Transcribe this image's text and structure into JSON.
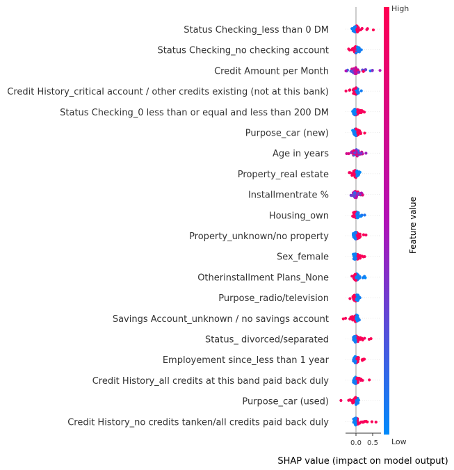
{
  "chart_data": {
    "type": "scatter",
    "subtype": "shap-beeswarm",
    "xlabel": "SHAP value (impact on model output)",
    "xticks": [
      0.0,
      0.5
    ],
    "xtick_labels": [
      "0.0",
      "0.5"
    ],
    "xlim": [
      -0.5,
      0.75
    ],
    "colorbar": {
      "title": "Feature value",
      "high_label": "High",
      "low_label": "Low",
      "low_color": "#008afb",
      "mid_color": "#b111b6",
      "high_color": "#ff0052"
    },
    "features": [
      {
        "name": "Status Checking_less than 0 DM",
        "neg_min": -0.12,
        "pos_max": 0.52,
        "neg_color": "low",
        "pos_color": "high"
      },
      {
        "name": "Status Checking_no checking account",
        "neg_min": -0.22,
        "pos_max": 0.16,
        "neg_color": "high",
        "pos_color": "low"
      },
      {
        "name": "Credit Amount per Month",
        "neg_min": -0.3,
        "pos_max": 0.72,
        "neg_color": "mix",
        "pos_color": "mix"
      },
      {
        "name": "Credit History_critical account / other credits existing (not at this bank)",
        "neg_min": -0.3,
        "pos_max": 0.16,
        "neg_color": "high",
        "pos_color": "low"
      },
      {
        "name": "Status Checking_0 less than or equal and less than 200 DM",
        "neg_min": -0.1,
        "pos_max": 0.25,
        "neg_color": "low",
        "pos_color": "high"
      },
      {
        "name": "Purpose_car (new)",
        "neg_min": -0.1,
        "pos_max": 0.26,
        "neg_color": "low",
        "pos_color": "high"
      },
      {
        "name": "Age in years",
        "neg_min": -0.28,
        "pos_max": 0.3,
        "neg_color": "mix",
        "pos_color": "mix"
      },
      {
        "name": "Property_real estate",
        "neg_min": -0.2,
        "pos_max": 0.12,
        "neg_color": "high",
        "pos_color": "low"
      },
      {
        "name": "Installmentrate %",
        "neg_min": -0.15,
        "pos_max": 0.2,
        "neg_color": "mix",
        "pos_color": "mix"
      },
      {
        "name": "Housing_own",
        "neg_min": -0.1,
        "pos_max": 0.26,
        "neg_color": "high",
        "pos_color": "low"
      },
      {
        "name": "Property_unknown/no property",
        "neg_min": -0.08,
        "pos_max": 0.3,
        "neg_color": "low",
        "pos_color": "high"
      },
      {
        "name": "Sex_female",
        "neg_min": -0.08,
        "pos_max": 0.26,
        "neg_color": "low",
        "pos_color": "high"
      },
      {
        "name": "Otherinstallment Plans_None",
        "neg_min": -0.12,
        "pos_max": 0.28,
        "neg_color": "high",
        "pos_color": "low"
      },
      {
        "name": "Purpose_radio/television",
        "neg_min": -0.18,
        "pos_max": 0.12,
        "neg_color": "high",
        "pos_color": "low"
      },
      {
        "name": "Savings Account_unknown / no savings account",
        "neg_min": -0.38,
        "pos_max": 0.1,
        "neg_color": "high",
        "pos_color": "low"
      },
      {
        "name": "Status_ divorced/separated",
        "neg_min": -0.05,
        "pos_max": 0.45,
        "neg_color": "low",
        "pos_color": "high"
      },
      {
        "name": "Employement since_less than 1 year",
        "neg_min": -0.06,
        "pos_max": 0.25,
        "neg_color": "low",
        "pos_color": "high"
      },
      {
        "name": "Credit History_all credits at this band paid back duly",
        "neg_min": -0.05,
        "pos_max": 0.4,
        "neg_color": "low",
        "pos_color": "high"
      },
      {
        "name": "Purpose_car (used)",
        "neg_min": -0.45,
        "pos_max": 0.08,
        "neg_color": "high",
        "pos_color": "low"
      },
      {
        "name": "Credit History_no credits tanken/all credits paid back duly",
        "neg_min": -0.04,
        "pos_max": 0.6,
        "neg_color": "low",
        "pos_color": "high"
      }
    ]
  }
}
